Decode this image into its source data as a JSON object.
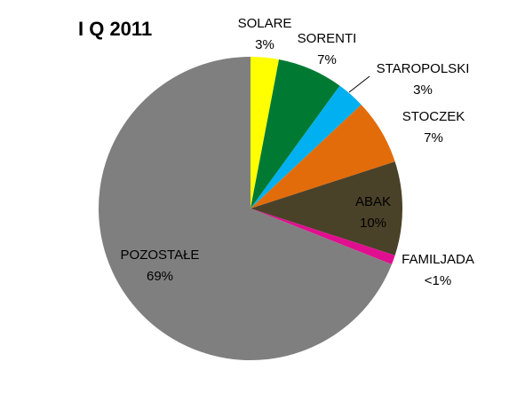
{
  "chart_data": {
    "type": "pie",
    "title": "I Q 2011",
    "slices": [
      {
        "label": "SOLARE",
        "value": 3,
        "value_label": "3%",
        "color": "#ffff00"
      },
      {
        "label": "SORENTI",
        "value": 7,
        "value_label": "7%",
        "color": "#007a33"
      },
      {
        "label": "STAROPOLSKI",
        "value": 3,
        "value_label": "3%",
        "color": "#00b0f0"
      },
      {
        "label": "STOCZEK",
        "value": 7,
        "value_label": "7%",
        "color": "#e36c0a"
      },
      {
        "label": "ABAK",
        "value": 10,
        "value_label": "10%",
        "color": "#4a4129"
      },
      {
        "label": "FAMILJADA",
        "value": 1,
        "value_label": "<1%",
        "color": "#e00f8f"
      },
      {
        "label": "POZOSTAŁE",
        "value": 69,
        "value_label": "69%",
        "color": "#7f7f7f"
      }
    ]
  }
}
